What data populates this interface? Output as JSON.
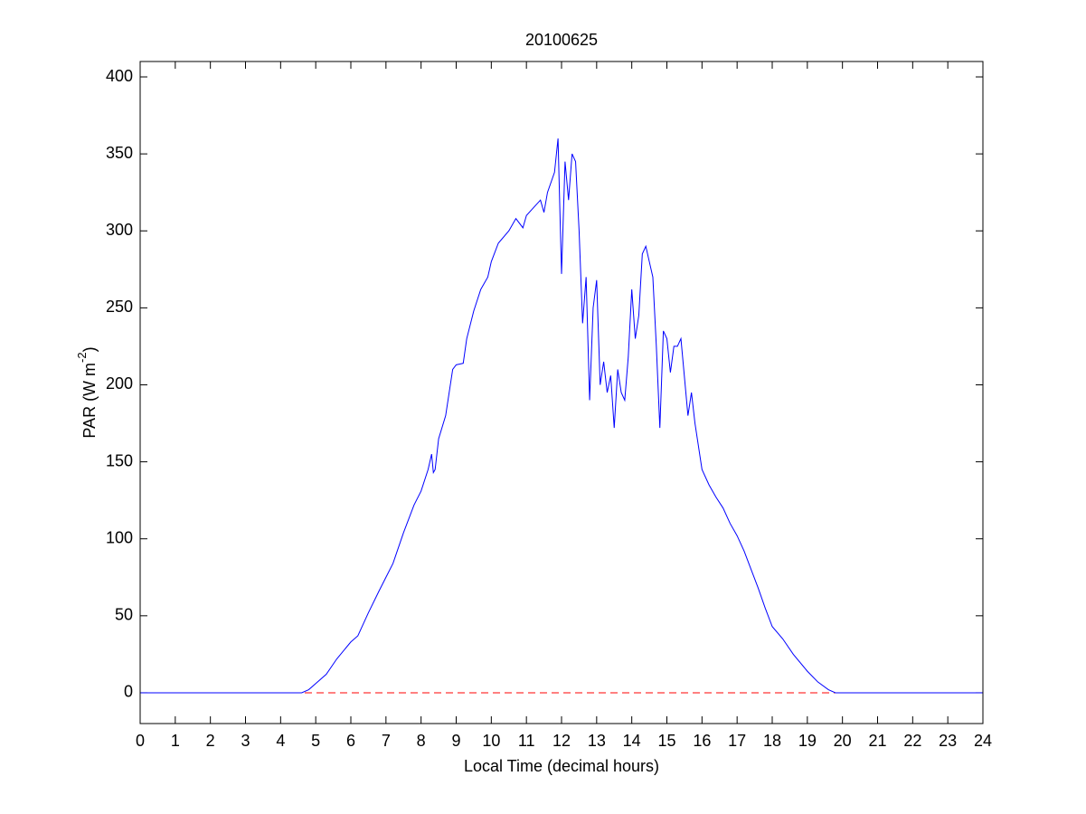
{
  "chart_data": {
    "type": "line",
    "title": "20100625",
    "xlabel": "Local Time (decimal hours)",
    "ylabel": [
      "PAR (W m",
      "-2",
      ")"
    ],
    "xlim": [
      0,
      24
    ],
    "xticks": [
      0,
      1,
      2,
      3,
      4,
      5,
      6,
      7,
      8,
      9,
      10,
      11,
      12,
      13,
      14,
      15,
      16,
      17,
      18,
      19,
      20,
      21,
      22,
      23,
      24
    ],
    "ylim": [
      -20,
      410
    ],
    "yticks": [
      0,
      50,
      100,
      150,
      200,
      250,
      300,
      350,
      400
    ],
    "hline": {
      "value": 0,
      "color": "#ff0000",
      "dash": true
    },
    "series": [
      {
        "color": "#0000ff",
        "x": [
          0,
          4.6,
          4.8,
          5,
          5.3,
          5.6,
          6,
          6.2,
          6.5,
          6.8,
          7,
          7.2,
          7.5,
          7.8,
          8,
          8.2,
          8.3,
          8.35,
          8.4,
          8.5,
          8.7,
          8.9,
          9,
          9.2,
          9.3,
          9.5,
          9.7,
          9.9,
          10,
          10.2,
          10.5,
          10.7,
          10.9,
          11,
          11.2,
          11.4,
          11.5,
          11.6,
          11.8,
          11.9,
          12,
          12.1,
          12.2,
          12.3,
          12.4,
          12.5,
          12.6,
          12.7,
          12.8,
          12.9,
          13,
          13.1,
          13.2,
          13.3,
          13.4,
          13.5,
          13.6,
          13.7,
          13.8,
          13.9,
          14,
          14.1,
          14.2,
          14.3,
          14.4,
          14.5,
          14.6,
          14.7,
          14.8,
          14.9,
          15,
          15.1,
          15.2,
          15.3,
          15.4,
          15.5,
          15.6,
          15.7,
          15.8,
          16,
          16.2,
          16.4,
          16.6,
          16.8,
          17,
          17.2,
          17.4,
          17.6,
          17.8,
          18,
          18.3,
          18.6,
          19,
          19.3,
          19.6,
          19.8,
          24
        ],
        "values": [
          0,
          0,
          2,
          6,
          12,
          22,
          33,
          37,
          52,
          66,
          75,
          84,
          104,
          122,
          131,
          145,
          155,
          143,
          145,
          165,
          180,
          210,
          213,
          214,
          230,
          248,
          262,
          270,
          280,
          292,
          300,
          308,
          302,
          310,
          315,
          320,
          312,
          325,
          338,
          360,
          272,
          345,
          320,
          350,
          345,
          300,
          240,
          270,
          190,
          250,
          268,
          200,
          215,
          195,
          206,
          172,
          210,
          195,
          190,
          218,
          262,
          230,
          245,
          285,
          290,
          280,
          270,
          225,
          172,
          235,
          230,
          208,
          225,
          225,
          230,
          205,
          180,
          195,
          175,
          145,
          135,
          127,
          120,
          110,
          102,
          92,
          80,
          68,
          55,
          43,
          35,
          25,
          14,
          7,
          2,
          0,
          0
        ]
      }
    ]
  }
}
